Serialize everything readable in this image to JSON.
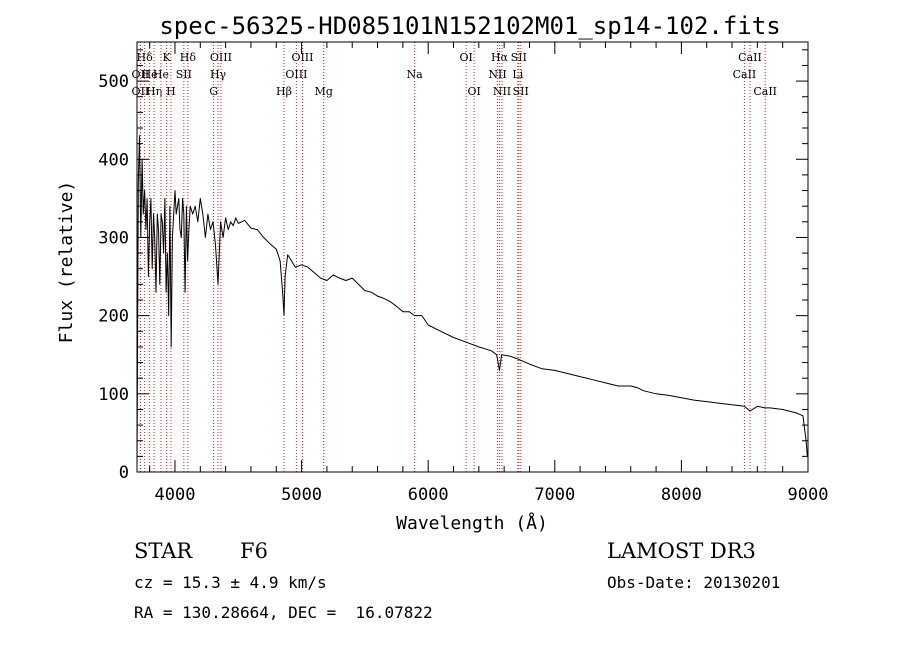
{
  "chart_data": {
    "type": "line",
    "title": "spec-56325-HD085101N152102M01_sp14-102.fits",
    "xlabel": "Wavelength (Å)",
    "ylabel": "Flux (relative)",
    "xlim": [
      3700,
      9000
    ],
    "ylim": [
      0,
      550
    ],
    "xticks": [
      4000,
      5000,
      6000,
      7000,
      8000,
      9000
    ],
    "yticks": [
      0,
      100,
      200,
      300,
      400,
      500
    ],
    "grid": false,
    "series": [
      {
        "name": "spectrum",
        "x": [
          3700,
          3710,
          3720,
          3730,
          3740,
          3750,
          3760,
          3770,
          3780,
          3790,
          3800,
          3810,
          3820,
          3830,
          3840,
          3850,
          3860,
          3870,
          3880,
          3890,
          3900,
          3910,
          3920,
          3930,
          3940,
          3950,
          3960,
          3970,
          3980,
          3990,
          4000,
          4010,
          4020,
          4030,
          4040,
          4050,
          4060,
          4070,
          4080,
          4090,
          4100,
          4110,
          4120,
          4140,
          4160,
          4180,
          4200,
          4220,
          4240,
          4260,
          4280,
          4300,
          4320,
          4340,
          4360,
          4380,
          4400,
          4420,
          4440,
          4460,
          4480,
          4500,
          4550,
          4600,
          4650,
          4700,
          4750,
          4800,
          4830,
          4850,
          4861,
          4870,
          4890,
          4920,
          4950,
          5000,
          5050,
          5100,
          5150,
          5200,
          5250,
          5300,
          5350,
          5400,
          5450,
          5500,
          5550,
          5600,
          5650,
          5700,
          5750,
          5800,
          5850,
          5893,
          5950,
          6000,
          6100,
          6200,
          6300,
          6400,
          6500,
          6540,
          6563,
          6580,
          6650,
          6700,
          6800,
          6900,
          7000,
          7100,
          7200,
          7300,
          7400,
          7500,
          7600,
          7650,
          7700,
          7800,
          7900,
          8000,
          8100,
          8200,
          8300,
          8400,
          8498,
          8542,
          8600,
          8662,
          8700,
          8800,
          8900,
          8960,
          8985,
          8995
        ],
        "values": [
          5,
          370,
          430,
          300,
          400,
          330,
          360,
          310,
          350,
          250,
          320,
          350,
          260,
          330,
          300,
          230,
          330,
          310,
          240,
          330,
          320,
          280,
          350,
          230,
          280,
          200,
          340,
          160,
          300,
          330,
          360,
          330,
          340,
          350,
          310,
          300,
          350,
          330,
          230,
          340,
          270,
          310,
          340,
          330,
          340,
          320,
          350,
          330,
          300,
          330,
          310,
          320,
          290,
          240,
          320,
          300,
          325,
          310,
          320,
          315,
          325,
          318,
          322,
          312,
          310,
          300,
          292,
          285,
          270,
          230,
          200,
          250,
          278,
          270,
          262,
          265,
          262,
          255,
          248,
          245,
          252,
          248,
          245,
          248,
          240,
          232,
          230,
          225,
          222,
          218,
          212,
          205,
          205,
          200,
          200,
          188,
          180,
          172,
          166,
          160,
          155,
          150,
          130,
          150,
          148,
          145,
          138,
          132,
          130,
          126,
          122,
          118,
          114,
          110,
          110,
          108,
          104,
          100,
          98,
          95,
          92,
          90,
          88,
          86,
          84,
          78,
          84,
          82,
          82,
          80,
          76,
          72,
          40,
          20
        ]
      }
    ],
    "line_markers": [
      {
        "label": "Hδ",
        "x": 3760,
        "row": 1
      },
      {
        "label": "OII",
        "x": 3727,
        "row": 2
      },
      {
        "label": "OII",
        "x": 3727,
        "row": 3
      },
      {
        "label": "He",
        "x": 3800,
        "row": 2
      },
      {
        "label": "Hη",
        "x": 3835,
        "row": 3
      },
      {
        "label": "K",
        "x": 3934,
        "row": 1
      },
      {
        "label": "He",
        "x": 3889,
        "row": 2
      },
      {
        "label": "H",
        "x": 3968,
        "row": 3
      },
      {
        "label": "Hδ",
        "x": 4102,
        "row": 1
      },
      {
        "label": "SII",
        "x": 4070,
        "row": 2
      },
      {
        "label": "OIII",
        "x": 4363,
        "row": 1
      },
      {
        "label": "Hγ",
        "x": 4340,
        "row": 2
      },
      {
        "label": "G",
        "x": 4305,
        "row": 3
      },
      {
        "label": "Hβ",
        "x": 4861,
        "row": 3
      },
      {
        "label": "OIII",
        "x": 5007,
        "row": 1
      },
      {
        "label": "OIII",
        "x": 4959,
        "row": 2
      },
      {
        "label": "Mg",
        "x": 5175,
        "row": 3
      },
      {
        "label": "Na",
        "x": 5893,
        "row": 2
      },
      {
        "label": "OI",
        "x": 6300,
        "row": 1
      },
      {
        "label": "OI",
        "x": 6363,
        "row": 3
      },
      {
        "label": "Hα",
        "x": 6563,
        "row": 1
      },
      {
        "label": "SII",
        "x": 6716,
        "row": 1
      },
      {
        "label": "NII",
        "x": 6548,
        "row": 2
      },
      {
        "label": "Li",
        "x": 6708,
        "row": 2
      },
      {
        "label": "NII",
        "x": 6583,
        "row": 3
      },
      {
        "label": "SII",
        "x": 6731,
        "row": 3
      },
      {
        "label": "CaII",
        "x": 8542,
        "row": 1
      },
      {
        "label": "CaII",
        "x": 8498,
        "row": 2
      },
      {
        "label": "CaII",
        "x": 8662,
        "row": 3
      }
    ]
  },
  "info": {
    "object_type": "STAR",
    "subclass": "F6",
    "survey": "LAMOST DR3",
    "redshift": "cz = 15.3 ± 4.9 km/s",
    "obs_date": "Obs-Date: 20130201",
    "coords": "RA = 130.28664, DEC =  16.07822"
  },
  "colors": {
    "spectrum": "#000000",
    "marker_line": "#cc2222",
    "axis": "#000000",
    "background": "#ffffff"
  }
}
